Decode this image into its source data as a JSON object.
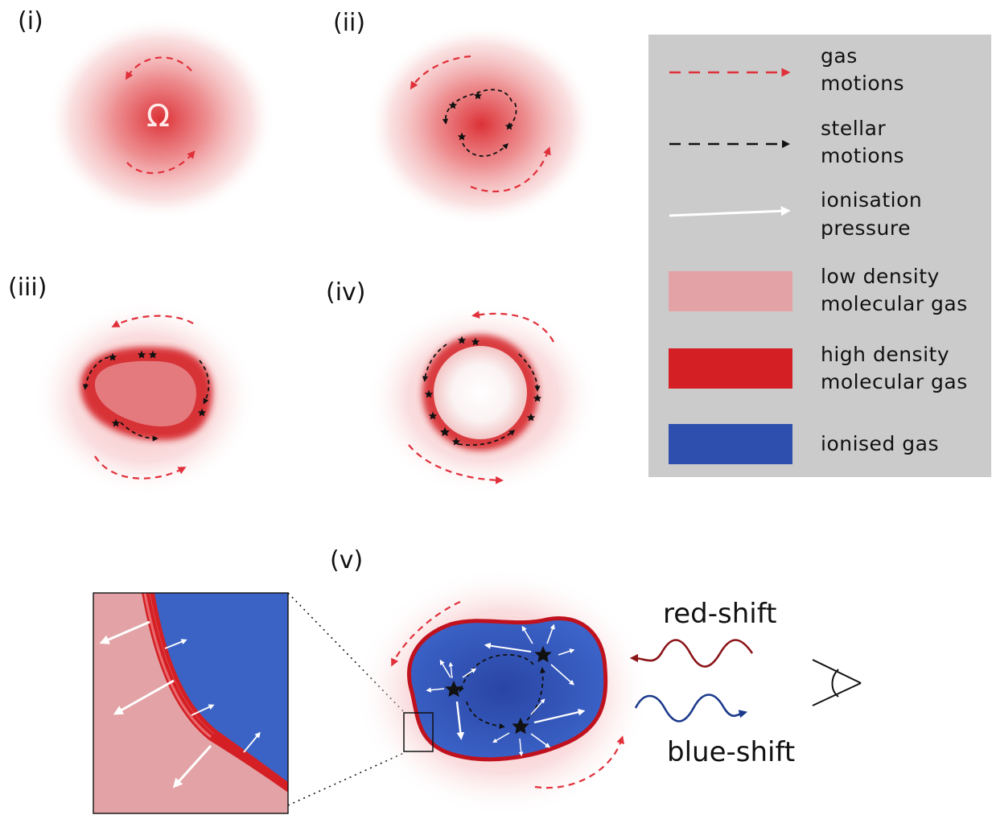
{
  "panels": {
    "i": "(i)",
    "ii": "(ii)",
    "iii": "(iii)",
    "iv": "(iv)",
    "v": "(v)"
  },
  "omega_symbol": "Ω",
  "legend": {
    "gas_motions": [
      "gas",
      "motions"
    ],
    "stellar_motions": [
      "stellar",
      "motions"
    ],
    "ionisation_pressure": [
      "ionisation",
      "pressure"
    ],
    "low_density": [
      "low density",
      "molecular gas"
    ],
    "high_density": [
      "high density",
      "molecular gas"
    ],
    "ionised_gas": [
      "ionised gas"
    ]
  },
  "shift_labels": {
    "red": "red-shift",
    "blue": "blue-shift"
  },
  "colors": {
    "gas_arrow": "#e0303a",
    "stellar_arrow": "#111111",
    "ionisation_arrow": "#ffffff",
    "low_density": "#e3a3a6",
    "high_density": "#d42025",
    "ionised": "#2f4fae",
    "legend_bg": "#cbcbcb",
    "red_shift_wave": "#8a1418",
    "blue_shift_wave": "#1c3a8c"
  }
}
